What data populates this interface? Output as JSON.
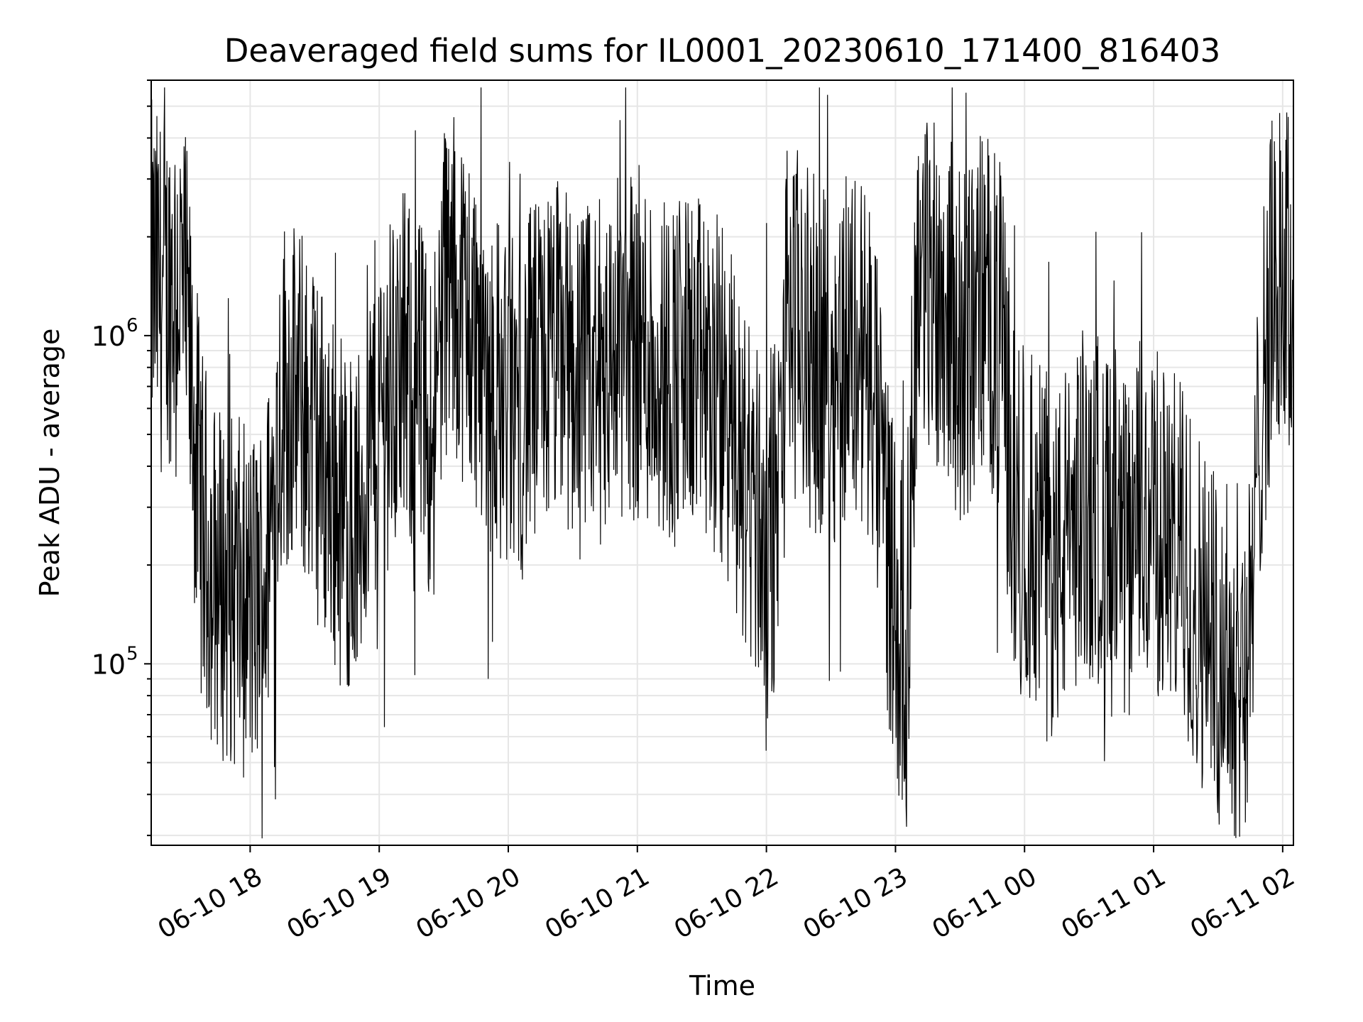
{
  "chart_data": {
    "type": "line",
    "title": "Deaveraged field sums for IL0001_20230610_171400_816403",
    "xlabel": "Time",
    "ylabel": "Peak ADU - average",
    "yscale": "log",
    "ylim": [
      28000,
      6000000
    ],
    "xlim": [
      "06-10 17:14",
      "06-11 02:05"
    ],
    "grid": true,
    "line_color": "#000000",
    "grid_color": "#e6e6e6",
    "x_ticks": [
      "06-10 18",
      "06-10 19",
      "06-10 20",
      "06-10 21",
      "06-10 22",
      "06-10 23",
      "06-11 00",
      "06-11 01",
      "06-11 02"
    ],
    "y_ticks": [
      {
        "base": "10",
        "exp": "5",
        "value": 100000
      },
      {
        "base": "10",
        "exp": "6",
        "value": 1000000
      }
    ],
    "series": [
      {
        "x": [
          "06-10 17:14",
          "06-10 17:20",
          "06-10 17:26",
          "06-10 17:30",
          "06-10 17:34",
          "06-10 17:38",
          "06-10 17:42",
          "06-10 17:46",
          "06-10 17:50",
          "06-10 17:55",
          "06-10 18:00",
          "06-10 18:04",
          "06-10 18:08",
          "06-10 18:15",
          "06-10 18:25",
          "06-10 18:35",
          "06-10 18:42",
          "06-10 18:50",
          "06-10 18:55",
          "06-10 19:00",
          "06-10 19:10",
          "06-10 19:18",
          "06-10 19:25",
          "06-10 19:30",
          "06-10 19:38",
          "06-10 19:45",
          "06-10 19:50",
          "06-10 19:55",
          "06-10 20:05",
          "06-10 20:15",
          "06-10 20:25",
          "06-10 20:35",
          "06-10 20:45",
          "06-10 20:55",
          "06-10 21:05",
          "06-10 21:15",
          "06-10 21:25",
          "06-10 21:35",
          "06-10 21:42",
          "06-10 21:48",
          "06-10 21:55",
          "06-10 22:00",
          "06-10 22:05",
          "06-10 22:10",
          "06-10 22:20",
          "06-10 22:30",
          "06-10 22:40",
          "06-10 22:48",
          "06-10 22:55",
          "06-10 23:00",
          "06-10 23:05",
          "06-10 23:10",
          "06-10 23:20",
          "06-10 23:25",
          "06-10 23:30",
          "06-10 23:35",
          "06-10 23:40",
          "06-10 23:45",
          "06-10 23:50",
          "06-10 23:55",
          "06-11 00:05",
          "06-11 00:15",
          "06-11 00:25",
          "06-11 00:35",
          "06-11 00:45",
          "06-11 00:55",
          "06-11 01:05",
          "06-11 01:15",
          "06-11 01:25",
          "06-11 01:32",
          "06-11 01:38",
          "06-11 01:45",
          "06-11 01:50",
          "06-11 01:55",
          "06-11 02:00",
          "06-11 02:05"
        ],
        "values": [
          1500000,
          1300000,
          1600000,
          1200000,
          500000,
          250000,
          200000,
          180000,
          170000,
          160000,
          150000,
          160000,
          200000,
          700000,
          600000,
          400000,
          300000,
          250000,
          500000,
          600000,
          800000,
          700000,
          500000,
          1500000,
          1300000,
          1000000,
          800000,
          700000,
          600000,
          800000,
          900000,
          700000,
          800000,
          1000000,
          900000,
          800000,
          800000,
          700000,
          600000,
          400000,
          300000,
          250000,
          300000,
          1200000,
          900000,
          800000,
          1000000,
          800000,
          300000,
          150000,
          100000,
          1500000,
          1400000,
          1200000,
          900000,
          1000000,
          1300000,
          1100000,
          900000,
          300000,
          250000,
          200000,
          300000,
          300000,
          200000,
          300000,
          250000,
          200000,
          130000,
          110000,
          100000,
          110000,
          700000,
          1300000,
          1600000,
          1200000
        ]
      }
    ]
  }
}
